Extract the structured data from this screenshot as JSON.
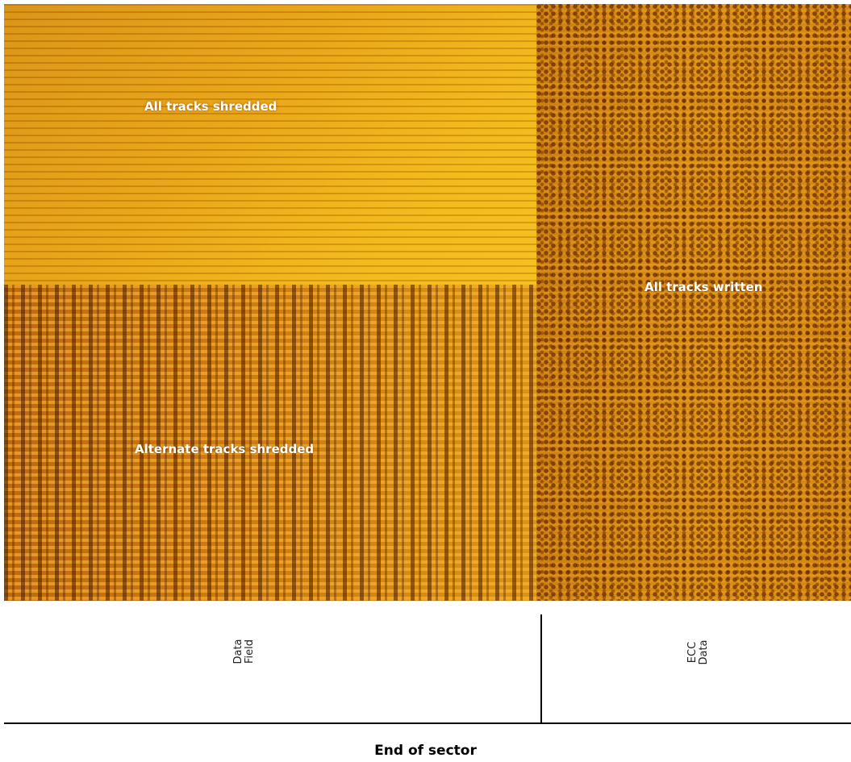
{
  "image": {
    "labels": {
      "all_tracks_shredded": "All tracks shredded",
      "all_tracks_written": "All tracks written",
      "alternate_tracks_shredded": "Alternate tracks shredded"
    },
    "colors": {
      "shredded_region": "#e6a214",
      "alternate_region": "#cf7e12",
      "written_region": "#d98f16"
    }
  },
  "diagram": {
    "data_field": "Data\nField",
    "ecc_data": "ECC\nData",
    "end_of_sector": "End of sector"
  }
}
